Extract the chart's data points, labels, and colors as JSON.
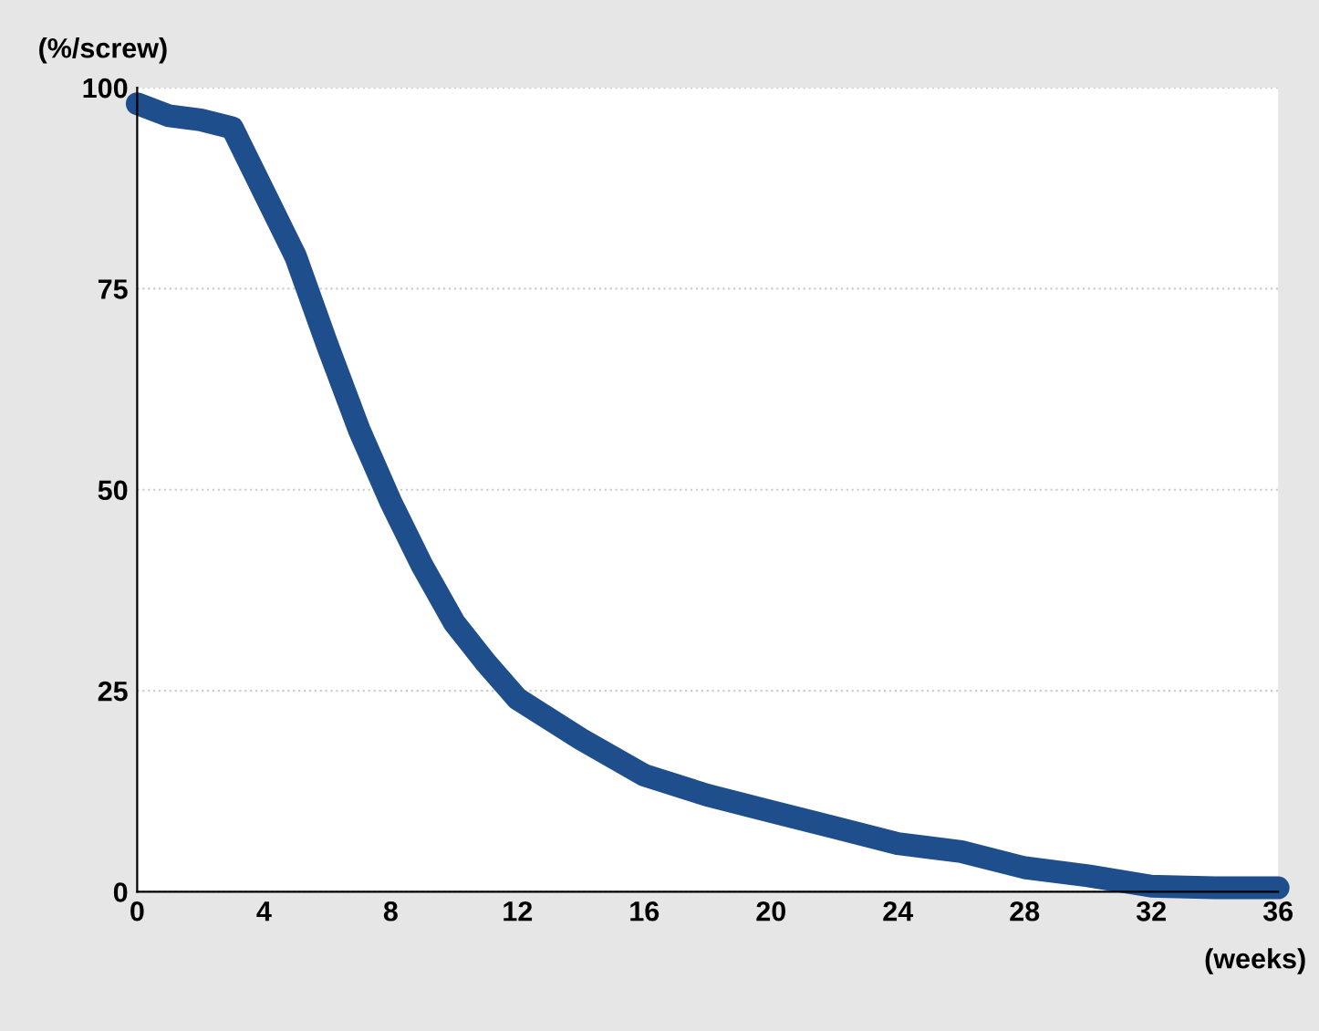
{
  "chart_data": {
    "type": "line",
    "ylabel": "(%/screw)",
    "xlabel": "(weeks)",
    "x": [
      0,
      1,
      2,
      3,
      4,
      5,
      6,
      7,
      8,
      9,
      10,
      11,
      12,
      14,
      16,
      18,
      20,
      22,
      24,
      26,
      28,
      30,
      32,
      34,
      36
    ],
    "series": [
      {
        "color": "#1f4e8c",
        "values": [
          98,
          96.5,
          96,
          95,
          87,
          79,
          68,
          57.5,
          48.5,
          40.5,
          33.5,
          28.5,
          24,
          19,
          14.5,
          12,
          10,
          8,
          6,
          5,
          3,
          2,
          0.7,
          0.5,
          0.5
        ]
      }
    ],
    "xlim": [
      0,
      36
    ],
    "xticks": [
      0,
      4,
      8,
      12,
      16,
      20,
      24,
      28,
      32,
      36
    ],
    "ylim": [
      0,
      100
    ],
    "yticks": [
      0,
      25,
      50,
      75,
      100
    ],
    "grid": "y",
    "legend": false,
    "line_style": "solid"
  }
}
